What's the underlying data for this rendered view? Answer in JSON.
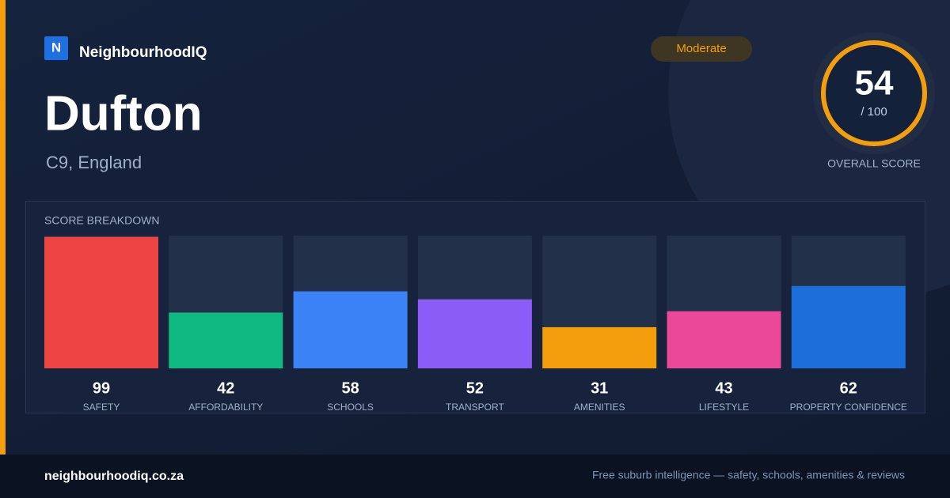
{
  "brand": {
    "logo_letter": "N",
    "name": "NeighbourhoodIQ"
  },
  "badge": "Moderate",
  "place": {
    "name": "Dufton",
    "region": "C9, England"
  },
  "overall": {
    "score": 54,
    "out_of": "/ 100",
    "label": "OVERALL SCORE"
  },
  "chart_data": {
    "type": "bar",
    "title": "SCORE BREAKDOWN",
    "categories": [
      "SAFETY",
      "AFFORDABILITY",
      "SCHOOLS",
      "TRANSPORT",
      "AMENITIES",
      "LIFESTYLE",
      "PROPERTY CONFIDENCE"
    ],
    "values": [
      99,
      42,
      58,
      52,
      31,
      43,
      62
    ],
    "colors": [
      "#ef4444",
      "#10b981",
      "#3b82f6",
      "#8b5cf6",
      "#f59e0b",
      "#ec4899",
      "#1d6ed8"
    ],
    "ylim": [
      0,
      100
    ]
  },
  "footer": {
    "site": "neighbourhoodiq.co.za",
    "tagline": "Free suburb intelligence — safety, schools, amenities & reviews"
  }
}
